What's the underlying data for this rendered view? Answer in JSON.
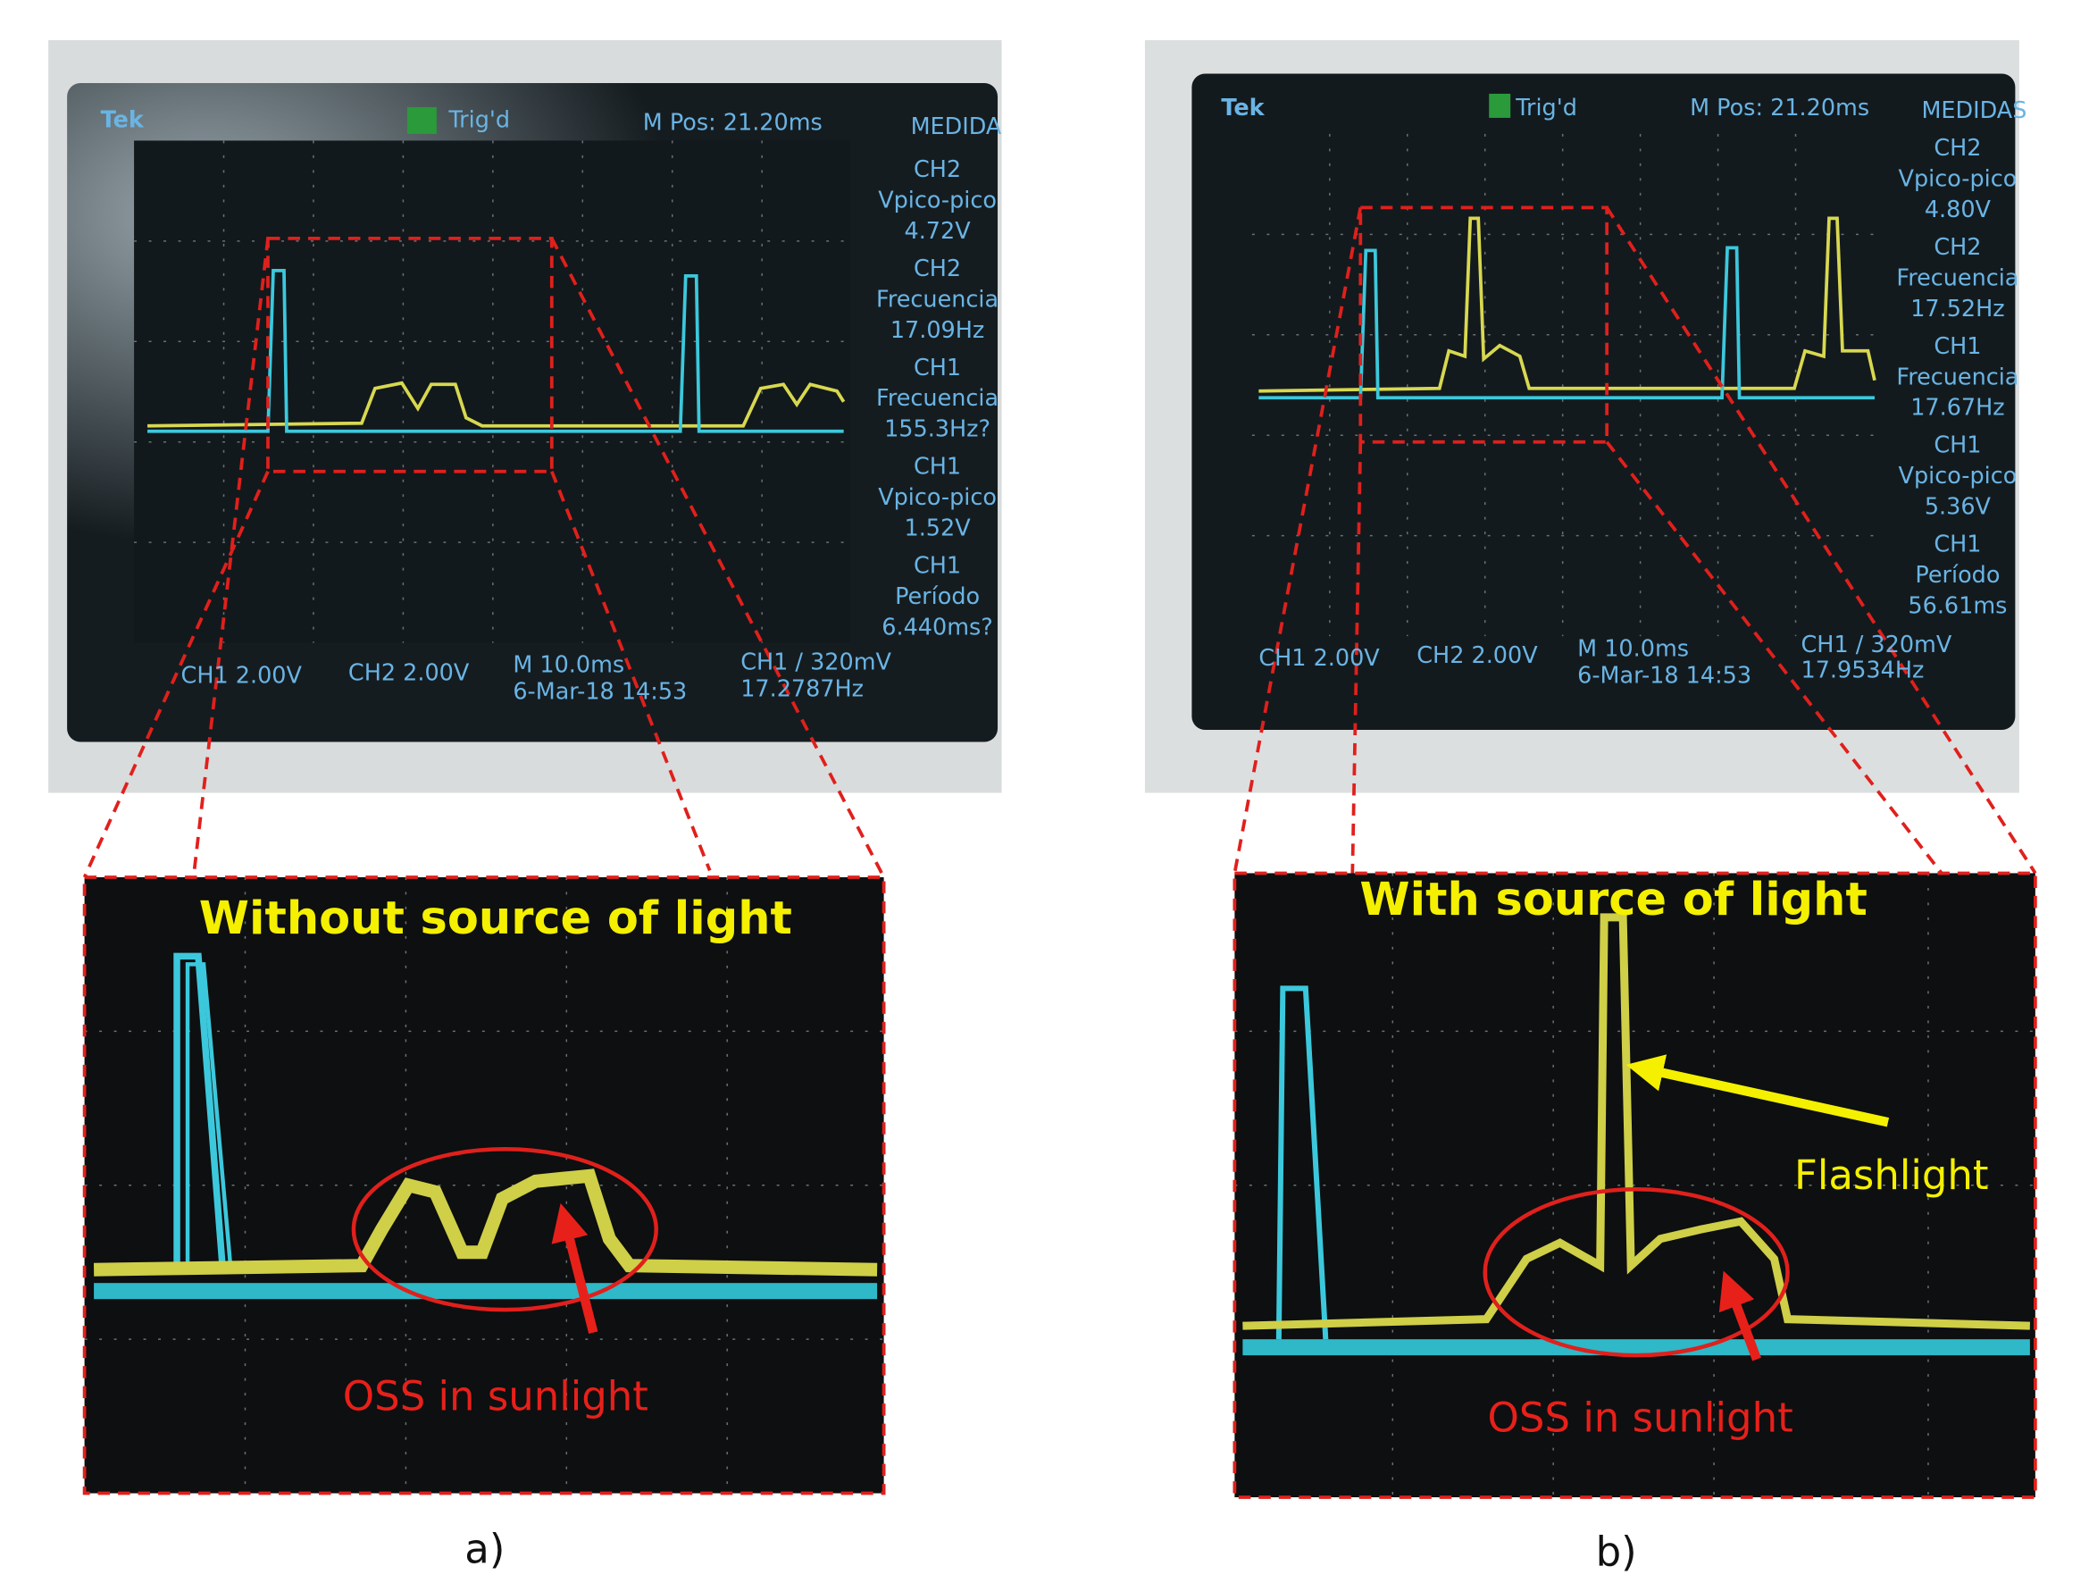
{
  "panels": [
    {
      "label": "a)",
      "screen": {
        "brand": "Tek",
        "trigger_state": "Trig'd",
        "position": "M Pos: 21.20ms",
        "menu": "MEDIDA",
        "measurements": [
          {
            "channel": "CH2",
            "quantity": "Vpico-pico",
            "reading": "4.72V"
          },
          {
            "channel": "CH2",
            "quantity": "Frecuencia",
            "reading": "17.09Hz"
          },
          {
            "channel": "CH1",
            "quantity": "Frecuencia",
            "reading": "155.3Hz?"
          },
          {
            "channel": "CH1",
            "quantity": "Vpico-pico",
            "reading": "1.52V"
          },
          {
            "channel": "CH1",
            "quantity": "Período",
            "reading": "6.440ms?"
          }
        ],
        "ch1_scale": "CH1 2.00V",
        "ch2_scale": "CH2 2.00V",
        "timebase": "M 10.0ms",
        "timestamp": "6-Mar-18 14:53",
        "trigger_level": "CH1 / 320mV",
        "trigger_frequency": "17.2787Hz"
      },
      "zoom": {
        "title": "Without source of light",
        "annotations": [
          "OSS in sunlight"
        ]
      }
    },
    {
      "label": "b)",
      "screen": {
        "brand": "Tek",
        "trigger_state": "Trig'd",
        "position": "M Pos: 21.20ms",
        "menu": "MEDIDAS",
        "measurements": [
          {
            "channel": "CH2",
            "quantity": "Vpico-pico",
            "reading": "4.80V"
          },
          {
            "channel": "CH2",
            "quantity": "Frecuencia",
            "reading": "17.52Hz"
          },
          {
            "channel": "CH1",
            "quantity": "Frecuencia",
            "reading": "17.67Hz"
          },
          {
            "channel": "CH1",
            "quantity": "Vpico-pico",
            "reading": "5.36V"
          },
          {
            "channel": "CH1",
            "quantity": "Período",
            "reading": "56.61ms"
          }
        ],
        "ch1_scale": "CH1 2.00V",
        "ch2_scale": "CH2 2.00V",
        "timebase": "M 10.0ms",
        "timestamp": "6-Mar-18 14:53",
        "trigger_level": "CH1 / 320mV",
        "trigger_frequency": "17.9534Hz"
      },
      "zoom": {
        "title": "With source of light",
        "annotations": [
          "Flashlight",
          "OSS in sunlight"
        ]
      }
    }
  ]
}
